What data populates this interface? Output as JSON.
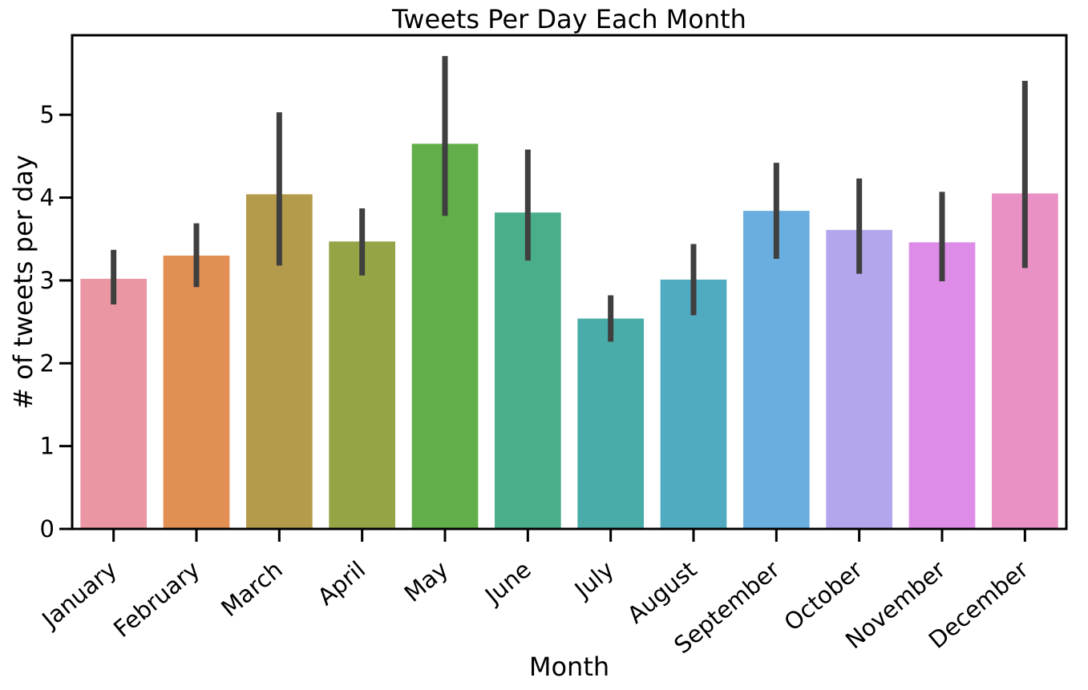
{
  "chart_data": {
    "type": "bar",
    "title": "Tweets Per Day Each Month",
    "xlabel": "Month",
    "ylabel": "# of tweets per day",
    "ylim": [
      0,
      5.96
    ],
    "yticks": [
      0,
      1,
      2,
      3,
      4,
      5
    ],
    "grid": false,
    "categories": [
      "January",
      "February",
      "March",
      "April",
      "May",
      "June",
      "July",
      "August",
      "September",
      "October",
      "November",
      "December"
    ],
    "values": [
      3.02,
      3.3,
      4.04,
      3.47,
      4.65,
      3.82,
      2.54,
      3.01,
      3.84,
      3.61,
      3.46,
      4.05
    ],
    "error_low": [
      2.71,
      2.92,
      3.18,
      3.06,
      3.78,
      3.24,
      2.26,
      2.58,
      3.26,
      3.08,
      2.99,
      3.15
    ],
    "error_high": [
      3.37,
      3.69,
      5.03,
      3.87,
      5.71,
      4.58,
      2.82,
      3.44,
      4.42,
      4.23,
      4.07,
      5.41
    ],
    "colors": [
      "#ea96a3",
      "#e28f53",
      "#b49b4b",
      "#95a445",
      "#62ae4a",
      "#4bae8a",
      "#4aaca8",
      "#50aac0",
      "#6aaee0",
      "#b4a6ec",
      "#dd8ce8",
      "#e990c4"
    ],
    "errbar_color": "#3f3f3f"
  }
}
